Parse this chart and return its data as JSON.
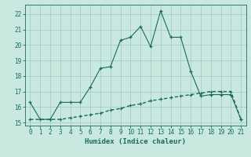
{
  "xlabel": "Humidex (Indice chaleur)",
  "bg_color": "#c8e8e0",
  "grid_color": "#a0c8c0",
  "line_color": "#1a6b5a",
  "xlim": [
    -0.5,
    21.5
  ],
  "ylim": [
    14.8,
    22.6
  ],
  "yticks": [
    15,
    16,
    17,
    18,
    19,
    20,
    21,
    22
  ],
  "xticks": [
    0,
    1,
    2,
    3,
    4,
    5,
    6,
    7,
    8,
    9,
    10,
    11,
    12,
    13,
    14,
    15,
    16,
    17,
    18,
    19,
    20,
    21
  ],
  "line1_x": [
    0,
    1,
    2,
    3,
    4,
    5,
    6,
    7,
    8,
    9,
    10,
    11,
    12,
    13,
    14,
    15,
    16,
    17,
    18,
    19,
    20,
    21
  ],
  "line1_y": [
    16.3,
    15.2,
    15.2,
    16.3,
    16.3,
    16.3,
    17.3,
    18.5,
    18.6,
    20.3,
    20.5,
    21.2,
    19.9,
    22.2,
    20.5,
    20.5,
    18.3,
    16.7,
    16.8,
    16.8,
    16.8,
    15.2
  ],
  "line2_x": [
    0,
    1,
    2,
    3,
    4,
    5,
    6,
    7,
    8,
    9,
    10,
    11,
    12,
    13,
    14,
    15,
    16,
    17,
    18,
    19,
    20,
    21
  ],
  "line2_y": [
    15.2,
    15.2,
    15.2,
    15.2,
    15.3,
    15.4,
    15.5,
    15.6,
    15.8,
    15.9,
    16.1,
    16.2,
    16.4,
    16.5,
    16.6,
    16.7,
    16.8,
    16.9,
    17.0,
    17.0,
    17.0,
    15.2
  ],
  "marker1_x": [
    0,
    2,
    3,
    4,
    5,
    6,
    7,
    8,
    9,
    10,
    11,
    12,
    13,
    14,
    15,
    16,
    17,
    18,
    19,
    20,
    21
  ],
  "marker1_y": [
    16.3,
    15.2,
    16.3,
    16.3,
    16.3,
    17.3,
    18.5,
    18.6,
    20.3,
    20.5,
    21.2,
    19.9,
    22.2,
    20.5,
    20.5,
    18.3,
    16.7,
    16.8,
    16.8,
    16.8,
    15.2
  ],
  "marker2_x": [
    0,
    1,
    2,
    3,
    4,
    5,
    6,
    7,
    8,
    9,
    10,
    11,
    12,
    13,
    14,
    15,
    16,
    17,
    18,
    19,
    20,
    21
  ],
  "marker2_y": [
    15.2,
    15.2,
    15.2,
    15.2,
    15.3,
    15.4,
    15.5,
    15.6,
    15.8,
    15.9,
    16.1,
    16.2,
    16.4,
    16.5,
    16.6,
    16.7,
    16.8,
    16.9,
    17.0,
    17.0,
    17.0,
    15.2
  ],
  "xlabel_fontsize": 6.5,
  "tick_fontsize": 5.5
}
